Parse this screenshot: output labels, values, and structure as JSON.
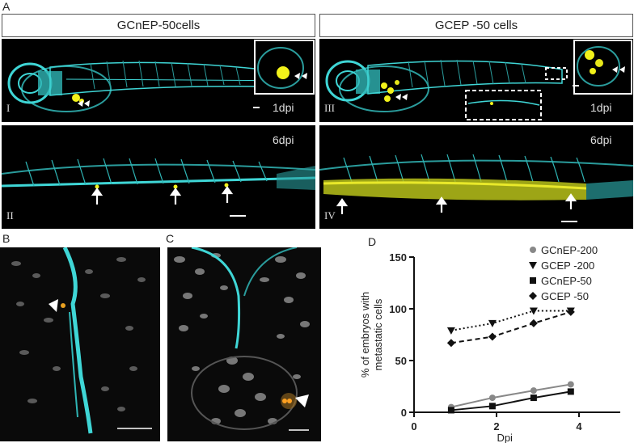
{
  "figure": {
    "panel_a": {
      "letter": "A",
      "header_left": "GCnEP-50cells",
      "header_right": "GCEP -50 cells",
      "images": [
        {
          "numeral": "I",
          "time": "1dpi"
        },
        {
          "numeral": "III",
          "time": "1dpi"
        },
        {
          "numeral": "II",
          "time": "6dpi"
        },
        {
          "numeral": "IV",
          "time": "6dpi"
        }
      ]
    },
    "panel_b": {
      "letter": "B"
    },
    "panel_c": {
      "letter": "C"
    },
    "panel_d": {
      "letter": "D"
    }
  },
  "colors": {
    "vessel": "#3fd6d6",
    "tumor": "#f2f21a",
    "nuclei": "#bdbdbd",
    "background": "#000000"
  },
  "chart_data": {
    "type": "line",
    "xlabel": "Dpi",
    "ylabel": "% of embryos with metastatic cells",
    "ylabel_lines": [
      "% of embryos with",
      "metastatic cells"
    ],
    "xlim": [
      0,
      5
    ],
    "ylim": [
      0,
      150
    ],
    "xticks": [
      0,
      2,
      4
    ],
    "yticks": [
      0,
      50,
      100,
      150
    ],
    "grid": false,
    "legend_position": "top-right",
    "series": [
      {
        "name": "GCnEP-200",
        "marker": "circle",
        "line": "solid",
        "color": "#888888",
        "x": [
          0.9,
          1.9,
          2.9,
          3.8
        ],
        "y": [
          5,
          14,
          21,
          27
        ]
      },
      {
        "name": "GCEP -200",
        "marker": "triangle-down",
        "line": "dotted",
        "color": "#111111",
        "x": [
          0.9,
          1.9,
          2.9,
          3.8
        ],
        "y": [
          79,
          86,
          98,
          98
        ]
      },
      {
        "name": "GCnEP-50",
        "marker": "square",
        "line": "solid",
        "color": "#111111",
        "x": [
          0.9,
          1.9,
          2.9,
          3.8
        ],
        "y": [
          2,
          6,
          14,
          20
        ]
      },
      {
        "name": "GCEP -50",
        "marker": "diamond",
        "line": "dashed",
        "color": "#111111",
        "x": [
          0.9,
          1.9,
          2.9,
          3.8
        ],
        "y": [
          67,
          73,
          86,
          97
        ]
      }
    ]
  }
}
